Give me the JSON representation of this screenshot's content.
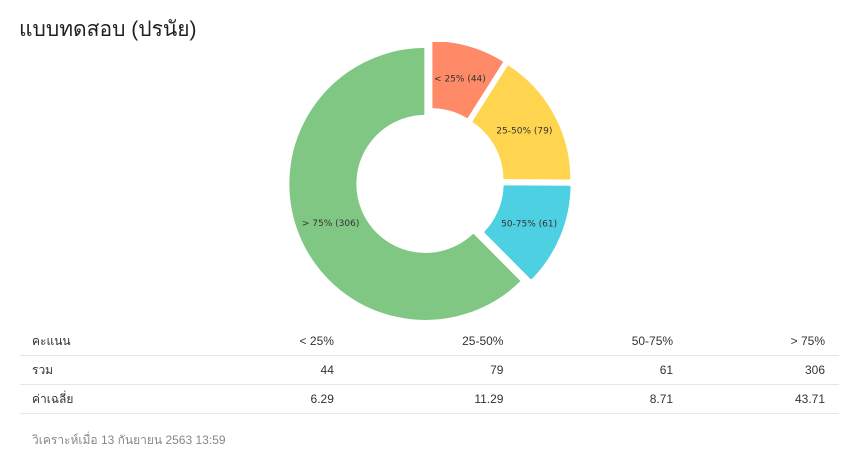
{
  "title": "แบบทดสอบ (ปรนัย)",
  "chart_data": {
    "type": "pie",
    "categories": [
      "< 25%",
      "25-50%",
      "50-75%",
      "> 75%"
    ],
    "values": [
      44,
      79,
      61,
      306
    ],
    "slice_labels": [
      "< 25% (44)",
      "25-50% (79)",
      "50-75% (61)",
      "> 75% (306)"
    ],
    "colors": [
      "#fe8a68",
      "#ffd54f",
      "#4dd0e1",
      "#81c784"
    ]
  },
  "table": {
    "headers": [
      "คะแนน",
      "< 25%",
      "25-50%",
      "50-75%",
      "> 75%"
    ],
    "rows": [
      [
        "รวม",
        "44",
        "79",
        "61",
        "306"
      ],
      [
        "ค่าเฉลี่ย",
        "6.29",
        "11.29",
        "8.71",
        "43.71"
      ]
    ]
  },
  "footer": "วิเคราะห์เมื่อ 13 กันยายน 2563 13:59"
}
